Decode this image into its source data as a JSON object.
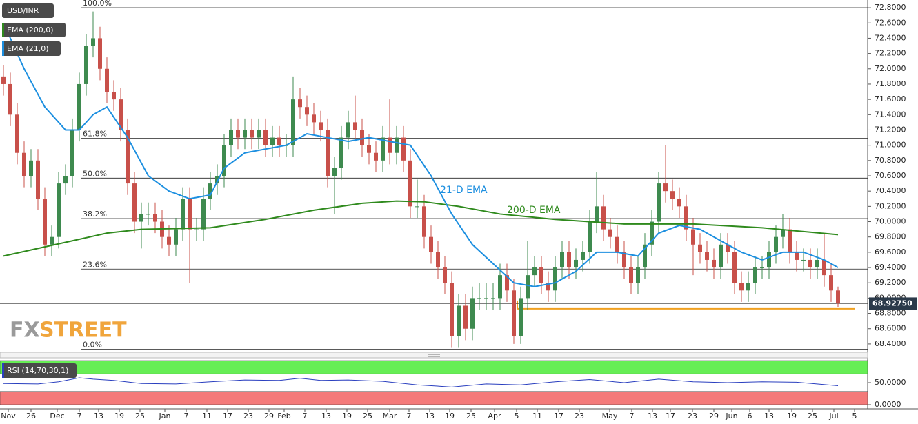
{
  "chart_data": {
    "type": "candlestick",
    "title": "USD/INR",
    "xlim": [
      -0.5,
      125.3
    ],
    "xticks": [
      {
        "value": 0.7,
        "label": "Nov"
      },
      {
        "value": 4,
        "label": "26"
      },
      {
        "value": 7.8,
        "label": "Dec"
      },
      {
        "value": 11,
        "label": "7"
      },
      {
        "value": 13.8,
        "label": "13"
      },
      {
        "value": 16.8,
        "label": "19"
      },
      {
        "value": 19.8,
        "label": "25"
      },
      {
        "value": 23.4,
        "label": "Jan"
      },
      {
        "value": 26.5,
        "label": "7"
      },
      {
        "value": 29.5,
        "label": "11"
      },
      {
        "value": 32.5,
        "label": "17"
      },
      {
        "value": 35.5,
        "label": "23"
      },
      {
        "value": 38.5,
        "label": "29"
      },
      {
        "value": 40.7,
        "label": "Feb"
      },
      {
        "value": 43.7,
        "label": "7"
      },
      {
        "value": 46.8,
        "label": "13"
      },
      {
        "value": 49.8,
        "label": "19"
      },
      {
        "value": 52.8,
        "label": "25"
      },
      {
        "value": 56,
        "label": "Mar"
      },
      {
        "value": 58.8,
        "label": "7"
      },
      {
        "value": 61.8,
        "label": "13"
      },
      {
        "value": 64.7,
        "label": "19"
      },
      {
        "value": 67.8,
        "label": "25"
      },
      {
        "value": 71.2,
        "label": "Apr"
      },
      {
        "value": 74.4,
        "label": "5"
      },
      {
        "value": 77.4,
        "label": "11"
      },
      {
        "value": 80.5,
        "label": "17"
      },
      {
        "value": 83.5,
        "label": "23"
      },
      {
        "value": 87.9,
        "label": "May"
      },
      {
        "value": 91.1,
        "label": "7"
      },
      {
        "value": 94.1,
        "label": "13"
      },
      {
        "value": 96.7,
        "label": "17"
      },
      {
        "value": 99.9,
        "label": "23"
      },
      {
        "value": 103,
        "label": "29"
      },
      {
        "value": 105.6,
        "label": "Jun"
      },
      {
        "value": 108.2,
        "label": "6"
      },
      {
        "value": 111,
        "label": "13"
      },
      {
        "value": 114.3,
        "label": "19"
      },
      {
        "value": 117.3,
        "label": "25"
      },
      {
        "value": 120.4,
        "label": "Jul"
      },
      {
        "value": 123.4,
        "label": "5"
      }
    ],
    "ylim": [
      68.3,
      72.9
    ],
    "yticks": [
      {
        "value": 68.4,
        "label": "68.4000"
      },
      {
        "value": 68.6,
        "label": "68.6000"
      },
      {
        "value": 68.8,
        "label": "68.8000"
      },
      {
        "value": 69.0,
        "label": "69.0000"
      },
      {
        "value": 69.2,
        "label": "69.2000"
      },
      {
        "value": 69.4,
        "label": "69.4000"
      },
      {
        "value": 69.6,
        "label": "69.6000"
      },
      {
        "value": 69.8,
        "label": "69.8000"
      },
      {
        "value": 70.0,
        "label": "70.0000"
      },
      {
        "value": 70.2,
        "label": "70.2000"
      },
      {
        "value": 70.4,
        "label": "70.4000"
      },
      {
        "value": 70.6,
        "label": "70.6000"
      },
      {
        "value": 70.8,
        "label": "70.8000"
      },
      {
        "value": 71.0,
        "label": "71.0000"
      },
      {
        "value": 71.2,
        "label": "71.2000"
      },
      {
        "value": 71.4,
        "label": "71.4000"
      },
      {
        "value": 71.6,
        "label": "71.6000"
      },
      {
        "value": 71.8,
        "label": "71.8000"
      },
      {
        "value": 72.0,
        "label": "72.0000"
      },
      {
        "value": 72.2,
        "label": "72.2000"
      },
      {
        "value": 72.4,
        "label": "72.4000"
      },
      {
        "value": 72.6,
        "label": "72.6000"
      },
      {
        "value": 72.8,
        "label": "72.8000"
      }
    ],
    "up_color": "#3e8a4f",
    "down_color": "#c8504a",
    "open": [
      71.9,
      71.8,
      71.4,
      70.9,
      70.6,
      70.8,
      70.3,
      69.7,
      69.8,
      70.5,
      70.6,
      71.2,
      71.8,
      72.3,
      72.4,
      72.0,
      71.7,
      71.6,
      71.2,
      70.5,
      70.0,
      70.1,
      70.1,
      70.0,
      69.8,
      69.7,
      69.9,
      70.3,
      69.9,
      69.9,
      70.3,
      70.5,
      70.6,
      71.0,
      71.2,
      71.1,
      71.2,
      71.1,
      71.2,
      71.0,
      71.1,
      71.0,
      71.0,
      71.6,
      71.5,
      71.4,
      71.3,
      71.2,
      70.6,
      70.7,
      71.1,
      71.3,
      71.2,
      71.0,
      70.9,
      70.8,
      71.1,
      70.9,
      71.1,
      70.8,
      70.2,
      70.2,
      69.8,
      69.6,
      69.4,
      69.2,
      68.5,
      68.9,
      68.6,
      69.0,
      69.0,
      69.0,
      69.0,
      69.3,
      69.1,
      68.5,
      69.0,
      69.3,
      69.4,
      69.2,
      69.1,
      69.4,
      69.6,
      69.4,
      69.5,
      69.6,
      70.0,
      70.2,
      69.9,
      69.8,
      69.6,
      69.4,
      69.2,
      69.4,
      69.7,
      70.0,
      70.5,
      70.4,
      70.3,
      70.2,
      69.9,
      69.7,
      69.6,
      69.5,
      69.4,
      69.7,
      69.6,
      69.2,
      69.1,
      69.2,
      69.4,
      69.4,
      69.6,
      69.8,
      69.9,
      69.6,
      69.5,
      69.5,
      69.4,
      69.5,
      69.3,
      69.1
    ],
    "high": [
      72.05,
      71.95,
      71.55,
      71.05,
      70.95,
      70.95,
      70.45,
      69.95,
      70.65,
      70.75,
      71.35,
      71.95,
      72.45,
      72.75,
      72.55,
      72.15,
      71.85,
      71.75,
      71.35,
      70.65,
      70.25,
      70.25,
      70.25,
      70.15,
      69.95,
      70.05,
      70.45,
      70.45,
      70.05,
      70.45,
      70.65,
      70.75,
      71.15,
      71.35,
      71.35,
      71.35,
      71.35,
      71.35,
      71.35,
      71.25,
      71.25,
      71.15,
      71.9,
      71.75,
      71.65,
      71.55,
      71.45,
      71.35,
      70.85,
      71.25,
      71.45,
      71.65,
      71.35,
      71.15,
      71.05,
      71.25,
      71.6,
      71.25,
      71.25,
      70.95,
      70.55,
      70.35,
      69.95,
      69.75,
      69.55,
      69.35,
      69.05,
      69.05,
      69.15,
      69.2,
      69.2,
      69.2,
      69.45,
      69.45,
      69.25,
      69.15,
      69.75,
      69.55,
      69.55,
      69.35,
      69.55,
      69.75,
      69.75,
      69.65,
      69.75,
      70.15,
      70.65,
      70.35,
      70.05,
      69.95,
      69.75,
      69.55,
      69.55,
      69.85,
      70.15,
      70.65,
      71.0,
      70.55,
      70.45,
      70.35,
      70.05,
      69.85,
      69.75,
      69.65,
      69.85,
      69.85,
      69.75,
      69.35,
      69.35,
      69.55,
      69.55,
      69.75,
      69.95,
      70.1,
      70.05,
      69.75,
      69.65,
      69.65,
      69.65,
      69.85,
      69.45,
      69.15
    ],
    "low": [
      71.65,
      71.25,
      70.75,
      70.45,
      70.45,
      70.15,
      69.55,
      69.55,
      69.65,
      70.35,
      70.45,
      71.05,
      71.65,
      72.15,
      71.85,
      71.55,
      71.45,
      71.05,
      70.35,
      69.85,
      69.65,
      69.95,
      69.85,
      69.65,
      69.55,
      69.55,
      69.75,
      69.2,
      69.75,
      69.75,
      70.15,
      70.35,
      70.45,
      70.85,
      70.95,
      70.95,
      70.95,
      70.95,
      70.85,
      70.85,
      70.85,
      70.85,
      70.85,
      71.35,
      71.25,
      71.15,
      71.05,
      70.45,
      70.1,
      70.55,
      70.95,
      71.05,
      70.85,
      70.75,
      70.65,
      70.65,
      70.75,
      70.75,
      70.65,
      70.05,
      70.05,
      69.65,
      69.45,
      69.25,
      69.05,
      68.35,
      68.35,
      68.45,
      68.45,
      68.85,
      68.85,
      68.85,
      68.85,
      68.95,
      68.4,
      68.4,
      68.85,
      69.15,
      69.05,
      68.95,
      68.95,
      69.25,
      69.25,
      69.25,
      69.35,
      69.45,
      69.85,
      69.75,
      69.65,
      69.45,
      69.25,
      69.05,
      69.05,
      69.25,
      69.55,
      69.85,
      70.25,
      70.15,
      70.05,
      69.75,
      69.3,
      69.45,
      69.35,
      69.25,
      69.25,
      69.45,
      69.05,
      68.95,
      68.95,
      69.05,
      69.25,
      69.25,
      69.45,
      69.65,
      69.45,
      69.35,
      69.35,
      69.25,
      69.25,
      69.15,
      68.95,
      68.88
    ],
    "close": [
      71.8,
      71.4,
      70.9,
      70.6,
      70.8,
      70.3,
      69.7,
      69.8,
      70.5,
      70.6,
      71.2,
      71.8,
      72.3,
      72.4,
      72.0,
      71.7,
      71.6,
      71.2,
      70.5,
      70.0,
      70.1,
      70.1,
      70.0,
      69.8,
      69.7,
      69.9,
      70.3,
      69.9,
      69.9,
      70.3,
      70.5,
      70.6,
      71.0,
      71.2,
      71.1,
      71.2,
      71.1,
      71.2,
      71.0,
      71.1,
      71.0,
      71.0,
      71.6,
      71.5,
      71.4,
      71.3,
      71.2,
      70.6,
      70.7,
      71.1,
      71.3,
      71.2,
      71.0,
      70.9,
      70.8,
      71.1,
      70.9,
      71.1,
      70.8,
      70.2,
      70.2,
      69.8,
      69.6,
      69.4,
      69.2,
      68.5,
      68.9,
      68.6,
      69.0,
      69.0,
      69.0,
      69.0,
      69.3,
      69.1,
      68.5,
      69.0,
      69.3,
      69.4,
      69.2,
      69.1,
      69.4,
      69.6,
      69.4,
      69.5,
      69.6,
      70.0,
      70.2,
      69.9,
      69.8,
      69.6,
      69.4,
      69.2,
      69.4,
      69.7,
      70.0,
      70.5,
      70.4,
      70.3,
      70.2,
      69.9,
      69.7,
      69.6,
      69.5,
      69.4,
      69.7,
      69.6,
      69.2,
      69.1,
      69.2,
      69.4,
      69.4,
      69.6,
      69.8,
      69.9,
      69.6,
      69.5,
      69.5,
      69.4,
      69.5,
      69.3,
      69.1,
      68.93
    ],
    "series": [
      {
        "name": "EMA (200,0)",
        "color": "#2f8a1d",
        "x": [
          0,
          10,
          15,
          20,
          30,
          38,
          45,
          52,
          57,
          61,
          66,
          72,
          80,
          90,
          100,
          110,
          121
        ],
        "values": [
          69.55,
          69.75,
          69.85,
          69.9,
          69.92,
          70.03,
          70.15,
          70.24,
          70.27,
          70.26,
          70.2,
          70.1,
          70.03,
          69.97,
          69.97,
          69.92,
          69.83
        ]
      },
      {
        "name": "EMA (21,0)",
        "color": "#1c8fe0",
        "x": [
          0,
          3,
          6,
          9,
          11,
          13,
          15,
          18,
          21,
          24,
          27,
          30,
          32,
          35,
          38,
          41,
          44,
          47,
          50,
          53,
          56,
          59,
          62,
          65,
          68,
          71,
          74,
          77,
          80,
          83,
          86,
          89,
          92,
          95,
          98,
          101,
          104,
          107,
          110,
          113,
          116,
          119,
          121
        ],
        "values": [
          72.6,
          72.0,
          71.5,
          71.2,
          71.2,
          71.4,
          71.5,
          71.1,
          70.6,
          70.4,
          70.3,
          70.35,
          70.7,
          70.9,
          70.95,
          71.0,
          71.15,
          71.1,
          71.05,
          71.1,
          71.05,
          71.0,
          70.6,
          70.1,
          69.7,
          69.45,
          69.2,
          69.15,
          69.2,
          69.35,
          69.6,
          69.6,
          69.55,
          69.85,
          69.95,
          69.9,
          69.75,
          69.6,
          69.5,
          69.6,
          69.6,
          69.5,
          69.4
        ]
      }
    ],
    "annotations": [
      {
        "text": "21-D EMA",
        "color": "#1c8fe0"
      },
      {
        "text": "200-D EMA",
        "color": "#2f8a1d"
      }
    ],
    "fib_levels": [
      {
        "value": 72.8,
        "label": "100.0%"
      },
      {
        "value": 71.09,
        "label": "61.8%"
      },
      {
        "value": 70.57,
        "label": "50.0%"
      },
      {
        "value": 70.04,
        "label": "38.2%"
      },
      {
        "value": 69.38,
        "label": "23.6%"
      },
      {
        "value": 68.33,
        "label": "0.0%"
      }
    ],
    "support": {
      "value": 68.86,
      "x": [
        74.5,
        123.4
      ],
      "color": "#f0a020"
    },
    "last_price": {
      "value": 68.9275,
      "label": "68.92750"
    },
    "logo": [
      "FX",
      "STREET"
    ],
    "rsi": {
      "name": "RSI (14,70,30,1)",
      "color": "#2a3fbf",
      "ylim": [
        0,
        100
      ],
      "yticks": [
        {
          "value": 0,
          "label": "0.0000"
        },
        {
          "value": 50,
          "label": "50.0000"
        }
      ],
      "bands": [
        {
          "from": 70,
          "to": 100,
          "color": "#66ee55"
        },
        {
          "from": 0,
          "to": 30,
          "color": "#f47a7a"
        }
      ],
      "x": [
        0,
        5,
        8,
        11,
        13,
        16,
        20,
        25,
        30,
        35,
        40,
        43,
        46,
        50,
        55,
        60,
        65,
        70,
        75,
        80,
        85,
        90,
        95,
        100,
        105,
        110,
        115,
        121
      ],
      "values": [
        48,
        47,
        52,
        61,
        58,
        55,
        48,
        47,
        52,
        56,
        55,
        60,
        55,
        56,
        53,
        45,
        40,
        47,
        45,
        52,
        57,
        50,
        58,
        52,
        50,
        52,
        51,
        43
      ]
    }
  }
}
